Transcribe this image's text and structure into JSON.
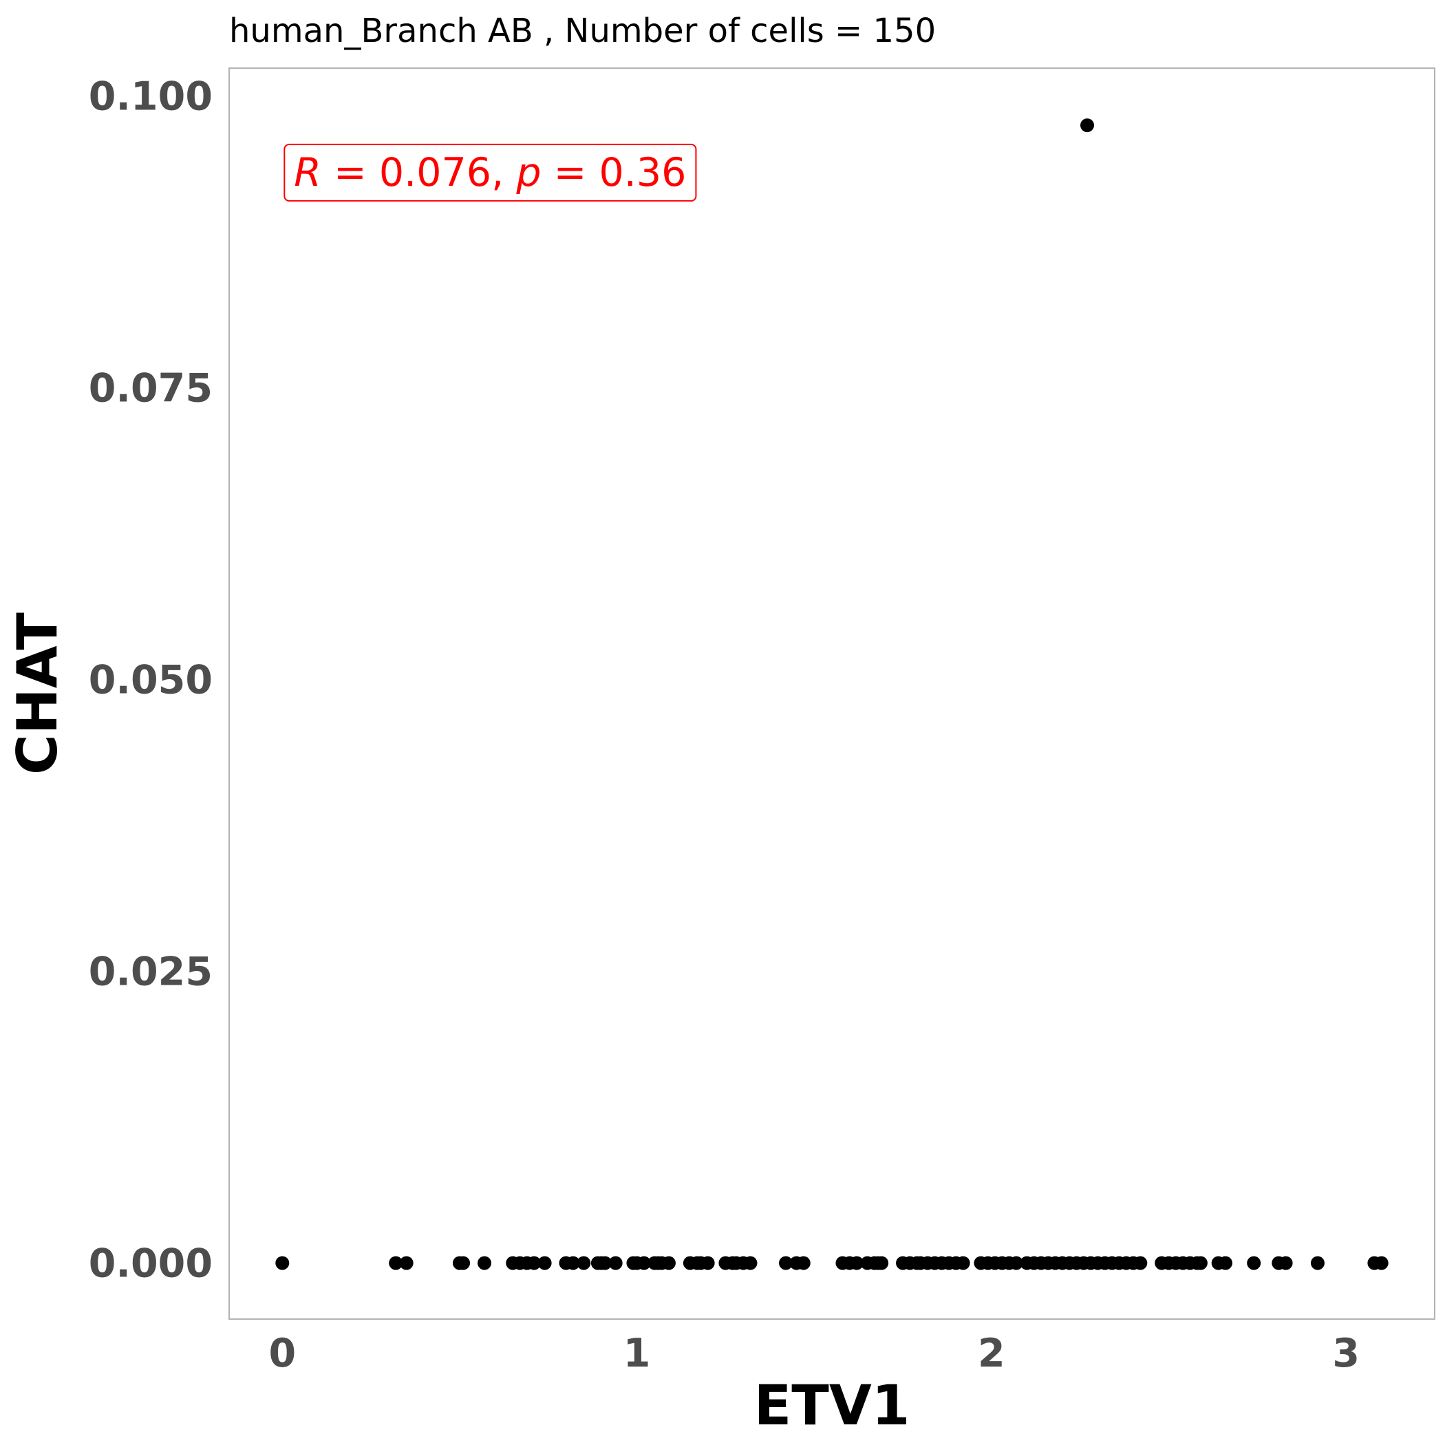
{
  "chart_data": {
    "type": "scatter",
    "title": "human_Branch AB , Number of cells =  150",
    "xlabel": "ETV1",
    "ylabel": "CHAT",
    "xlim": [
      -0.15,
      3.25
    ],
    "ylim": [
      -0.0048,
      0.1024
    ],
    "x_ticks": [
      0,
      1,
      2,
      3
    ],
    "x_tick_labels": [
      "0",
      "1",
      "2",
      "3"
    ],
    "y_ticks": [
      0.0,
      0.025,
      0.05,
      0.075,
      0.1
    ],
    "y_tick_labels": [
      "0.000",
      "0.025",
      "0.050",
      "0.075",
      "0.100"
    ],
    "grid": false,
    "point_color": "#000000",
    "annotation": {
      "r_symbol": "R",
      "r_text": " = 0.076, ",
      "p_symbol": "p",
      "p_text": " = 0.36",
      "color": "#ff0000",
      "x": 0.0,
      "y": 0.0935
    },
    "points": [
      {
        "x": 0.0,
        "y": 0
      },
      {
        "x": 0.32,
        "y": 0
      },
      {
        "x": 0.35,
        "y": 0
      },
      {
        "x": 0.5,
        "y": 0
      },
      {
        "x": 0.51,
        "y": 0
      },
      {
        "x": 0.57,
        "y": 0
      },
      {
        "x": 0.65,
        "y": 0
      },
      {
        "x": 0.67,
        "y": 0
      },
      {
        "x": 0.69,
        "y": 0
      },
      {
        "x": 0.71,
        "y": 0
      },
      {
        "x": 0.74,
        "y": 0
      },
      {
        "x": 0.8,
        "y": 0
      },
      {
        "x": 0.82,
        "y": 0
      },
      {
        "x": 0.85,
        "y": 0
      },
      {
        "x": 0.89,
        "y": 0
      },
      {
        "x": 0.9,
        "y": 0
      },
      {
        "x": 0.91,
        "y": 0
      },
      {
        "x": 0.94,
        "y": 0
      },
      {
        "x": 0.99,
        "y": 0
      },
      {
        "x": 1.0,
        "y": 0
      },
      {
        "x": 1.02,
        "y": 0
      },
      {
        "x": 1.05,
        "y": 0
      },
      {
        "x": 1.06,
        "y": 0
      },
      {
        "x": 1.07,
        "y": 0
      },
      {
        "x": 1.09,
        "y": 0
      },
      {
        "x": 1.15,
        "y": 0
      },
      {
        "x": 1.17,
        "y": 0
      },
      {
        "x": 1.18,
        "y": 0
      },
      {
        "x": 1.2,
        "y": 0
      },
      {
        "x": 1.25,
        "y": 0
      },
      {
        "x": 1.27,
        "y": 0
      },
      {
        "x": 1.28,
        "y": 0
      },
      {
        "x": 1.3,
        "y": 0
      },
      {
        "x": 1.32,
        "y": 0
      },
      {
        "x": 1.42,
        "y": 0
      },
      {
        "x": 1.45,
        "y": 0
      },
      {
        "x": 1.47,
        "y": 0
      },
      {
        "x": 1.58,
        "y": 0
      },
      {
        "x": 1.6,
        "y": 0
      },
      {
        "x": 1.62,
        "y": 0
      },
      {
        "x": 1.65,
        "y": 0
      },
      {
        "x": 1.67,
        "y": 0
      },
      {
        "x": 1.68,
        "y": 0
      },
      {
        "x": 1.69,
        "y": 0
      },
      {
        "x": 1.75,
        "y": 0
      },
      {
        "x": 1.77,
        "y": 0
      },
      {
        "x": 1.79,
        "y": 0
      },
      {
        "x": 1.8,
        "y": 0
      },
      {
        "x": 1.82,
        "y": 0
      },
      {
        "x": 1.84,
        "y": 0
      },
      {
        "x": 1.86,
        "y": 0
      },
      {
        "x": 1.88,
        "y": 0
      },
      {
        "x": 1.9,
        "y": 0
      },
      {
        "x": 1.92,
        "y": 0
      },
      {
        "x": 1.97,
        "y": 0
      },
      {
        "x": 1.99,
        "y": 0
      },
      {
        "x": 2.01,
        "y": 0
      },
      {
        "x": 2.03,
        "y": 0
      },
      {
        "x": 2.05,
        "y": 0
      },
      {
        "x": 2.07,
        "y": 0
      },
      {
        "x": 2.1,
        "y": 0
      },
      {
        "x": 2.12,
        "y": 0
      },
      {
        "x": 2.14,
        "y": 0
      },
      {
        "x": 2.16,
        "y": 0
      },
      {
        "x": 2.18,
        "y": 0
      },
      {
        "x": 2.2,
        "y": 0
      },
      {
        "x": 2.22,
        "y": 0
      },
      {
        "x": 2.24,
        "y": 0
      },
      {
        "x": 2.26,
        "y": 0
      },
      {
        "x": 2.28,
        "y": 0
      },
      {
        "x": 2.3,
        "y": 0
      },
      {
        "x": 2.32,
        "y": 0
      },
      {
        "x": 2.34,
        "y": 0
      },
      {
        "x": 2.36,
        "y": 0
      },
      {
        "x": 2.38,
        "y": 0
      },
      {
        "x": 2.4,
        "y": 0
      },
      {
        "x": 2.42,
        "y": 0
      },
      {
        "x": 2.48,
        "y": 0
      },
      {
        "x": 2.5,
        "y": 0
      },
      {
        "x": 2.52,
        "y": 0
      },
      {
        "x": 2.54,
        "y": 0
      },
      {
        "x": 2.56,
        "y": 0
      },
      {
        "x": 2.58,
        "y": 0
      },
      {
        "x": 2.59,
        "y": 0
      },
      {
        "x": 2.64,
        "y": 0
      },
      {
        "x": 2.66,
        "y": 0
      },
      {
        "x": 2.74,
        "y": 0
      },
      {
        "x": 2.81,
        "y": 0
      },
      {
        "x": 2.83,
        "y": 0
      },
      {
        "x": 2.92,
        "y": 0
      },
      {
        "x": 3.08,
        "y": 0
      },
      {
        "x": 3.1,
        "y": 0
      },
      {
        "x": 2.27,
        "y": 0.0975
      }
    ]
  }
}
